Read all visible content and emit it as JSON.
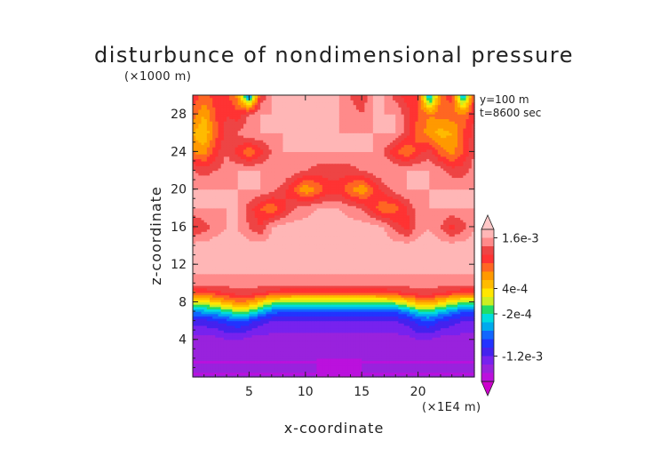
{
  "chart_data": {
    "type": "heatmap",
    "title": "disturbunce of nondimensional pressure",
    "xlabel": "x-coordinate",
    "ylabel": "z-coordinate",
    "x_unit": "(×1E4 m)",
    "y_unit": "(×1000 m)",
    "annotations": [
      "y=100 m",
      "t=8600 sec"
    ],
    "xlim": [
      0,
      25
    ],
    "ylim": [
      0,
      30
    ],
    "x_ticks": [
      5,
      10,
      15,
      20
    ],
    "y_ticks": [
      4,
      8,
      12,
      16,
      20,
      24,
      28
    ],
    "colorbar": {
      "labels": [
        {
          "label": "1.6e-3",
          "value": 0.0016
        },
        {
          "label": "4e-4",
          "value": 0.0004
        },
        {
          "label": "-2e-4",
          "value": -0.0002
        },
        {
          "label": "-1.2e-3",
          "value": -0.0012
        }
      ],
      "levels": [
        -0.0018,
        -0.0016,
        -0.0014,
        -0.0012,
        -0.001,
        -0.0008,
        -0.0006,
        -0.0004,
        -0.0002,
        0,
        0.0002,
        0.0004,
        0.0006,
        0.0008,
        0.001,
        0.0012,
        0.0014,
        0.0016,
        0.0018
      ],
      "colors": [
        "#cc00cc",
        "#bb11dd",
        "#9922dd",
        "#7722ee",
        "#4422ee",
        "#2233ff",
        "#1166ff",
        "#00aaee",
        "#00dddd",
        "#22dd66",
        "#ccee22",
        "#ffe600",
        "#ffbb00",
        "#ff9900",
        "#ff6622",
        "#ff3333",
        "#ee4444",
        "#ff8a8a",
        "#ffb6b6",
        "#ffc7c7"
      ]
    },
    "field": {
      "x": [
        0,
        1,
        2,
        3,
        4,
        5,
        6,
        7,
        8,
        9,
        10,
        11,
        12,
        13,
        14,
        15,
        16,
        17,
        18,
        19,
        20,
        21,
        22,
        23,
        24,
        25
      ],
      "y": [
        0,
        2,
        4,
        6,
        7,
        8,
        9,
        10,
        12,
        14,
        16,
        18,
        20,
        22,
        24,
        26,
        28,
        30
      ],
      "z": [
        [
          -0.0016,
          -0.0016,
          -0.0016,
          -0.0016,
          -0.0016,
          -0.0016,
          -0.0016,
          -0.0016,
          -0.0016,
          -0.0016,
          -0.0016,
          -0.0016,
          -0.0017,
          -0.0017,
          -0.0017,
          -0.0016,
          -0.0016,
          -0.0016,
          -0.0016,
          -0.0016,
          -0.0016,
          -0.0016,
          -0.0016,
          -0.0016,
          -0.0016,
          -0.0016
        ],
        [
          -0.0016,
          -0.0016,
          -0.0016,
          -0.0016,
          -0.0016,
          -0.0016,
          -0.0016,
          -0.0016,
          -0.0016,
          -0.0016,
          -0.0016,
          -0.0016,
          -0.0016,
          -0.0016,
          -0.0016,
          -0.0016,
          -0.0016,
          -0.0016,
          -0.0016,
          -0.0016,
          -0.0016,
          -0.0016,
          -0.0016,
          -0.0016,
          -0.0016,
          -0.0016
        ],
        [
          -0.0015,
          -0.0015,
          -0.0015,
          -0.0014,
          -0.0014,
          -0.0015,
          -0.0015,
          -0.0015,
          -0.0015,
          -0.0015,
          -0.0015,
          -0.0015,
          -0.0015,
          -0.0015,
          -0.0015,
          -0.0015,
          -0.0015,
          -0.0015,
          -0.0015,
          -0.0015,
          -0.0014,
          -0.0014,
          -0.0015,
          -0.0015,
          -0.0015,
          -0.0015
        ],
        [
          -0.0011,
          -0.0011,
          -0.001,
          -0.0009,
          -0.0008,
          -0.0009,
          -0.0011,
          -0.0012,
          -0.0012,
          -0.0012,
          -0.0012,
          -0.0012,
          -0.0012,
          -0.0012,
          -0.0012,
          -0.0012,
          -0.0012,
          -0.0012,
          -0.0012,
          -0.0011,
          -0.0009,
          -0.0008,
          -0.001,
          -0.0011,
          -0.0012,
          -0.0012
        ],
        [
          -0.0006,
          -0.0005,
          -0.0004,
          -0.0002,
          0,
          -0.0001,
          -0.0004,
          -0.0007,
          -0.0008,
          -0.0008,
          -0.0008,
          -0.0008,
          -0.0008,
          -0.0008,
          -0.0008,
          -0.0008,
          -0.0008,
          -0.0008,
          -0.0008,
          -0.0006,
          -0.0003,
          -0.0002,
          -0.0004,
          -0.0006,
          -0.0008,
          -0.0008
        ],
        [
          0.0001,
          0.0002,
          0.0004,
          0.0006,
          0.0008,
          0.0007,
          0.0004,
          0.0001,
          0,
          -0.0001,
          -0.0001,
          -0.0001,
          -0.0001,
          -0.0001,
          -0.0001,
          -0.0001,
          -0.0001,
          0,
          0.0001,
          0.0003,
          0.0006,
          0.0007,
          0.0004,
          0.0002,
          0,
          0
        ],
        [
          0.0009,
          0.001,
          0.0011,
          0.0012,
          0.0013,
          0.0013,
          0.0012,
          0.0011,
          0.001,
          0.001,
          0.001,
          0.001,
          0.001,
          0.001,
          0.001,
          0.001,
          0.001,
          0.001,
          0.0011,
          0.0012,
          0.0013,
          0.0013,
          0.0012,
          0.0011,
          0.001,
          0.001
        ],
        [
          0.0015,
          0.0015,
          0.0015,
          0.0015,
          0.0015,
          0.0015,
          0.0015,
          0.0015,
          0.0015,
          0.0015,
          0.0015,
          0.0015,
          0.0015,
          0.0015,
          0.0015,
          0.0015,
          0.0015,
          0.0015,
          0.0015,
          0.0015,
          0.0015,
          0.0015,
          0.0015,
          0.0015,
          0.0015,
          0.0015
        ],
        [
          0.0017,
          0.0017,
          0.0017,
          0.0017,
          0.0017,
          0.0017,
          0.0017,
          0.0017,
          0.0017,
          0.0017,
          0.0017,
          0.0017,
          0.0017,
          0.0017,
          0.0017,
          0.0017,
          0.0017,
          0.0017,
          0.0017,
          0.0017,
          0.0017,
          0.0017,
          0.0017,
          0.0017,
          0.0017,
          0.0017
        ],
        [
          0.0017,
          0.0017,
          0.0017,
          0.0017,
          0.0017,
          0.0017,
          0.0017,
          0.0017,
          0.0017,
          0.0017,
          0.0017,
          0.0017,
          0.0017,
          0.0017,
          0.0017,
          0.0017,
          0.0017,
          0.0017,
          0.0017,
          0.0017,
          0.0017,
          0.0017,
          0.0017,
          0.0017,
          0.0017,
          0.0017
        ],
        [
          0.0011,
          0.0013,
          0.0015,
          0.0016,
          0.0016,
          0.0014,
          0.0012,
          0.0016,
          0.0017,
          0.0017,
          0.0017,
          0.0017,
          0.0017,
          0.0017,
          0.0017,
          0.0017,
          0.0017,
          0.0016,
          0.0013,
          0.0011,
          0.0015,
          0.0016,
          0.0014,
          0.0011,
          0.0013,
          0.0016
        ],
        [
          0.0016,
          0.0016,
          0.0016,
          0.0016,
          0.0016,
          0.0013,
          0.001,
          0.0008,
          0.0011,
          0.0014,
          0.0015,
          0.0016,
          0.0016,
          0.0016,
          0.0015,
          0.0014,
          0.0011,
          0.0008,
          0.0009,
          0.0012,
          0.0015,
          0.0016,
          0.0016,
          0.0016,
          0.0016,
          0.0016
        ],
        [
          0.0016,
          0.0016,
          0.0016,
          0.0016,
          0.0016,
          0.0016,
          0.0016,
          0.0015,
          0.0013,
          0.001,
          0.0006,
          0.0008,
          0.0011,
          0.0011,
          0.0008,
          0.0006,
          0.001,
          0.0013,
          0.0015,
          0.0016,
          0.0016,
          0.0016,
          0.0016,
          0.0016,
          0.0016,
          0.0016
        ],
        [
          0.0014,
          0.0013,
          0.0014,
          0.0015,
          0.0016,
          0.0016,
          0.0016,
          0.0016,
          0.0016,
          0.0015,
          0.0014,
          0.0013,
          0.0013,
          0.0013,
          0.0013,
          0.0014,
          0.0015,
          0.0016,
          0.0016,
          0.0016,
          0.0016,
          0.0016,
          0.0015,
          0.0013,
          0.0013,
          0.0015
        ],
        [
          0.0008,
          0.0007,
          0.0011,
          0.0014,
          0.0011,
          0.0008,
          0.0011,
          0.0014,
          0.0016,
          0.0016,
          0.0016,
          0.0016,
          0.0016,
          0.0016,
          0.0016,
          0.0016,
          0.0016,
          0.0014,
          0.001,
          0.0008,
          0.0011,
          0.0013,
          0.0009,
          0.0007,
          0.001,
          0.0014
        ],
        [
          0.0006,
          0.0004,
          0.0009,
          0.0013,
          0.0014,
          0.0016,
          0.0016,
          0.0016,
          0.0016,
          0.0016,
          0.0016,
          0.0016,
          0.0016,
          0.0016,
          0.0016,
          0.0016,
          0.0016,
          0.0016,
          0.0016,
          0.0013,
          0.0009,
          0.0007,
          0.0005,
          0.0006,
          0.001,
          0.0013
        ],
        [
          0.0009,
          0.0006,
          0.001,
          0.0012,
          0.0011,
          0.0014,
          0.0016,
          0.0016,
          0.0016,
          0.0016,
          0.0016,
          0.0016,
          0.0016,
          0.0016,
          0.0015,
          0.0014,
          0.0016,
          0.0016,
          0.0016,
          0.0013,
          0.001,
          0.0008,
          0.0009,
          0.0009,
          0.0008,
          0.0012
        ],
        [
          0.0012,
          0.0009,
          0.0011,
          0.0011,
          0.0007,
          -0.0008,
          0.0012,
          0.0016,
          0.0016,
          0.0016,
          0.0016,
          0.0016,
          0.0016,
          0.0016,
          0.0014,
          0.0012,
          0.0016,
          0.0016,
          0.0013,
          0.0011,
          0.0012,
          -0.0006,
          0.0009,
          0.0011,
          -0.0005,
          0.0011
        ]
      ]
    }
  }
}
